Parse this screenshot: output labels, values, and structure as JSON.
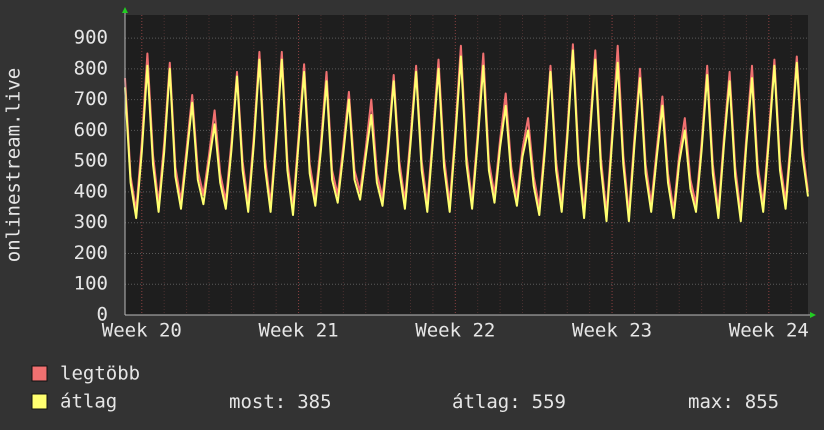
{
  "chart_data": {
    "type": "line",
    "y_label": "onlinestream.live",
    "categories": [
      null,
      null,
      null,
      "Week 20",
      null,
      null,
      null,
      null,
      null,
      null,
      null,
      null,
      null,
      null,
      null,
      null,
      null,
      null,
      null,
      null,
      null,
      null,
      null,
      null,
      null,
      null,
      null,
      null,
      null,
      null,
      null,
      "Week 21",
      null,
      null,
      null,
      null,
      null,
      null,
      null,
      null,
      null,
      null,
      null,
      null,
      null,
      null,
      null,
      null,
      null,
      null,
      null,
      null,
      null,
      null,
      null,
      null,
      null,
      null,
      null,
      "Week 22",
      null,
      null,
      null,
      null,
      null,
      null,
      null,
      null,
      null,
      null,
      null,
      null,
      null,
      null,
      null,
      null,
      null,
      null,
      null,
      null,
      null,
      null,
      null,
      null,
      null,
      null,
      null,
      "Week 23",
      null,
      null,
      null,
      null,
      null,
      null,
      null,
      null,
      null,
      null,
      null,
      null,
      null,
      null,
      null,
      null,
      null,
      null,
      null,
      null,
      null,
      null,
      null,
      null,
      null,
      null,
      null,
      "Week 24",
      null,
      null,
      null,
      null,
      null,
      null,
      null
    ],
    "series": [
      {
        "name": "legtöbb",
        "color": "#f07070",
        "values": [
          770,
          450,
          340,
          560,
          850,
          520,
          360,
          560,
          820,
          480,
          370,
          540,
          715,
          470,
          390,
          520,
          665,
          460,
          370,
          560,
          790,
          500,
          360,
          580,
          855,
          510,
          360,
          590,
          855,
          500,
          350,
          580,
          815,
          490,
          380,
          560,
          790,
          470,
          390,
          550,
          725,
          470,
          400,
          540,
          700,
          460,
          380,
          560,
          780,
          500,
          370,
          580,
          810,
          500,
          360,
          590,
          830,
          510,
          360,
          600,
          875,
          520,
          370,
          590,
          850,
          500,
          390,
          570,
          720,
          480,
          380,
          540,
          640,
          450,
          350,
          560,
          810,
          500,
          360,
          600,
          880,
          520,
          340,
          600,
          860,
          510,
          330,
          590,
          875,
          520,
          330,
          580,
          800,
          490,
          360,
          540,
          710,
          460,
          340,
          520,
          640,
          440,
          360,
          560,
          810,
          490,
          340,
          580,
          790,
          480,
          330,
          580,
          810,
          490,
          360,
          590,
          830,
          500,
          370,
          590,
          840,
          550,
          400
        ]
      },
      {
        "name": "átlag",
        "color": "#ffff70",
        "values": [
          740,
          430,
          315,
          530,
          810,
          490,
          335,
          530,
          800,
          450,
          345,
          515,
          690,
          440,
          360,
          495,
          620,
          430,
          345,
          535,
          775,
          470,
          335,
          555,
          830,
          480,
          335,
          565,
          830,
          470,
          325,
          555,
          790,
          460,
          355,
          535,
          760,
          440,
          365,
          525,
          700,
          440,
          375,
          515,
          650,
          430,
          355,
          535,
          760,
          470,
          345,
          555,
          790,
          470,
          335,
          565,
          800,
          480,
          335,
          575,
          840,
          490,
          345,
          565,
          810,
          470,
          365,
          545,
          680,
          450,
          355,
          515,
          600,
          420,
          325,
          535,
          790,
          470,
          335,
          575,
          860,
          490,
          315,
          575,
          830,
          480,
          305,
          565,
          820,
          490,
          305,
          555,
          770,
          460,
          335,
          515,
          680,
          430,
          315,
          495,
          600,
          410,
          335,
          535,
          780,
          460,
          315,
          555,
          760,
          450,
          305,
          555,
          770,
          460,
          335,
          565,
          810,
          470,
          345,
          565,
          820,
          520,
          385
        ]
      }
    ],
    "ylim": [
      0,
      975
    ],
    "yticks": [
      0,
      100,
      200,
      300,
      400,
      500,
      600,
      700,
      800,
      900
    ],
    "grid": true,
    "stats": [
      {
        "label": "most:",
        "value": 385
      },
      {
        "label": "átlag:",
        "value": 559
      },
      {
        "label": "max:",
        "value": 855
      }
    ]
  }
}
